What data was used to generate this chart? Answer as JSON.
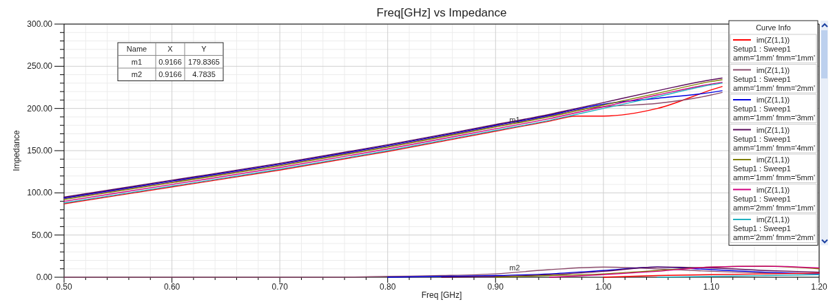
{
  "chart_data": {
    "type": "line",
    "title": "Freq[GHz] vs Impedance",
    "xlabel": "Freq [GHz]",
    "ylabel": "Impedance",
    "legend_title": "Curve Info",
    "legend": "top right",
    "grid": true,
    "marker": "none",
    "line_style": "solid",
    "xlim": [
      0.5,
      1.2
    ],
    "ylim": [
      0,
      300
    ],
    "xticks": [
      {
        "value": 0.5,
        "label": "0.50"
      },
      {
        "value": 0.6,
        "label": "0.60"
      },
      {
        "value": 0.7,
        "label": "0.70"
      },
      {
        "value": 0.8,
        "label": "0.80"
      },
      {
        "value": 0.9,
        "label": "0.90"
      },
      {
        "value": 1.0,
        "label": "1.00"
      },
      {
        "value": 1.1,
        "label": "1.10"
      },
      {
        "value": 1.2,
        "label": "1.20"
      }
    ],
    "yticks": [
      {
        "value": 0,
        "label": "0.00"
      },
      {
        "value": 50,
        "label": "50.00"
      },
      {
        "value": 100,
        "label": "100.00"
      },
      {
        "value": 150,
        "label": "150.00"
      },
      {
        "value": 200,
        "label": "200.00"
      },
      {
        "value": 250,
        "label": "250.00"
      },
      {
        "value": 300,
        "label": "300.00"
      }
    ],
    "annotations": [
      {
        "text": "m1",
        "x": 0.9166,
        "y": 179.8365
      },
      {
        "text": "m2",
        "x": 0.9166,
        "y": 4.7835
      },
      "Name",
      "X",
      "Y",
      "m1",
      "0.9166",
      "179.8365",
      "m2",
      "0.9166",
      "4.7835"
    ],
    "x": [
      0.5,
      0.6,
      0.7,
      0.8,
      0.9,
      0.95,
      0.975,
      1.0,
      1.05,
      1.1,
      1.11
    ],
    "series": [
      {
        "name": "im(Z(1,1))\nSetup1 : Sweep1\namm='1mm' fmm='1mm'",
        "color": "#ff0000",
        "values": [
          87,
          107,
          127,
          149,
          173,
          185,
          191,
          191,
          200,
          222,
          226
        ]
      },
      {
        "name": "im(Z(1,1))\nSetup1 : Sweep1\namm='1mm' fmm='2mm'",
        "color": "#8b4a6b",
        "values": [
          93,
          113,
          133,
          155,
          179,
          191,
          198,
          202,
          206,
          216,
          219
        ]
      },
      {
        "name": "im(Z(1,1))\nSetup1 : Sweep1\namm='1mm' fmm='3mm'",
        "color": "#0000e0",
        "values": [
          94,
          114,
          134,
          156,
          180,
          192,
          199,
          205,
          212,
          219,
          221
        ]
      },
      {
        "name": "im(Z(1,1))\nSetup1 : Sweep1\namm='1mm' fmm='4mm'",
        "color": "#5a0a5a",
        "values": [
          95,
          115,
          135,
          157,
          181,
          193,
          200,
          207,
          221,
          234,
          236
        ]
      },
      {
        "name": "im(Z(1,1))\nSetup1 : Sweep1\namm='1mm' fmm='5mm'",
        "color": "#808000",
        "values": [
          92,
          112,
          132,
          154,
          178,
          190,
          197,
          204,
          218,
          232,
          234
        ]
      },
      {
        "name": "im(Z(1,1))\nSetup1 : Sweep1\namm='2mm' fmm='1mm'",
        "color": "#d0007f",
        "values": [
          90,
          110,
          130,
          152,
          176,
          188,
          195,
          202,
          216,
          229,
          231
        ]
      },
      {
        "name": "im(Z(1,1))\nSetup1 : Sweep1\namm='2mm' fmm='2mm'",
        "color": "#20b0c0",
        "values": [
          88,
          108,
          128,
          150,
          174,
          186,
          193,
          200,
          214,
          228,
          230
        ]
      },
      {
        "color": "#8b4a6b",
        "x": [
          0.5,
          0.75,
          0.8,
          0.85,
          0.9,
          0.95,
          1.0,
          1.05,
          1.1,
          1.15,
          1.2
        ],
        "values": [
          0,
          0,
          1,
          2,
          4,
          9,
          12,
          10,
          7,
          5,
          4
        ]
      },
      {
        "color": "#0000e0",
        "x": [
          0.8,
          0.85,
          0.9,
          0.95,
          1.0,
          1.05,
          1.1,
          1.15,
          1.2
        ],
        "values": [
          0,
          1,
          2,
          4,
          8,
          12,
          9,
          6,
          4
        ]
      },
      {
        "color": "#5a0a5a",
        "x": [
          0.85,
          0.9,
          0.95,
          1.0,
          1.05,
          1.1,
          1.15,
          1.2
        ],
        "values": [
          0,
          1,
          3,
          7,
          12,
          11,
          8,
          6
        ]
      },
      {
        "color": "#808000",
        "x": [
          0.9,
          0.95,
          1.0,
          1.05,
          1.1,
          1.15,
          1.2
        ],
        "values": [
          0,
          2,
          4,
          8,
          12,
          13,
          10
        ]
      },
      {
        "color": "#d0007f",
        "x": [
          0.95,
          1.0,
          1.05,
          1.1,
          1.15,
          1.2
        ],
        "values": [
          0,
          3,
          7,
          12,
          13,
          11
        ]
      },
      {
        "color": "#ff0000",
        "x": [
          1.0,
          1.05,
          1.1,
          1.15,
          1.2
        ],
        "values": [
          0,
          2,
          3,
          4,
          5
        ]
      },
      {
        "color": "#20b0c0",
        "x": [
          1.05,
          1.1,
          1.15,
          1.2
        ],
        "values": [
          0,
          1,
          2,
          3
        ]
      }
    ]
  }
}
